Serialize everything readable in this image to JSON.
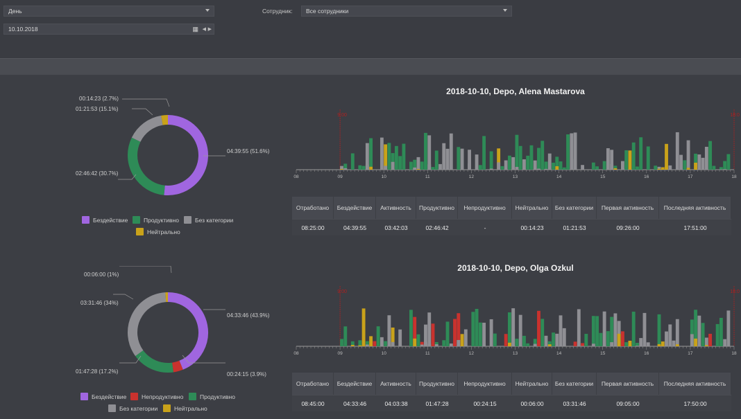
{
  "filters": {
    "period": {
      "value": "День"
    },
    "date": {
      "value": "10.10.2018"
    },
    "employee": {
      "label": "Сотрудник:",
      "value": "Все сотрудники"
    }
  },
  "colors": {
    "idle": "#a066e0",
    "productive": "#2e8b57",
    "uncategorized": "#8f8f94",
    "neutral": "#c9a21a",
    "unproductive": "#c9322e",
    "workline": "#b21f1f"
  },
  "icons": {
    "calendar": "calendar-icon",
    "prev": "arrow-left-icon",
    "next": "arrow-right-icon",
    "dropdown": "chevron-down-icon"
  },
  "columns": [
    "Отработано",
    "Бездействие",
    "Активность",
    "Продуктивно",
    "Непродуктивно",
    "Нейтрально",
    "Без категории",
    "Первая активность",
    "Последняя активность"
  ],
  "employees": [
    {
      "title": "2018-10-10, Depo, Alena Mastarova",
      "stats": [
        "08:25:00",
        "04:39:55",
        "03:42:03",
        "02:46:42",
        "-",
        "00:14:23",
        "01:21:53",
        "09:26:00",
        "17:51:00"
      ],
      "legend": [
        {
          "label": "Бездействие",
          "key": "idle"
        },
        {
          "label": "Продуктивно",
          "key": "productive"
        },
        {
          "label": "Без категории",
          "key": "uncategorized"
        },
        {
          "label": "Нейтрально",
          "key": "neutral"
        }
      ],
      "callouts": [
        "00:14:23 (2.7%)",
        "01:21:53 (15.1%)",
        "04:39:55 (51.6%)",
        "02:46:42 (30.7%)"
      ],
      "work_start": "9:00",
      "work_end": "18:00"
    },
    {
      "title": "2018-10-10, Depo, Olga Ozkul",
      "stats": [
        "08:45:00",
        "04:33:46",
        "04:03:38",
        "01:47:28",
        "00:24:15",
        "00:06:00",
        "03:31:46",
        "09:05:00",
        "17:50:00"
      ],
      "legend": [
        {
          "label": "Бездействие",
          "key": "idle"
        },
        {
          "label": "Непродуктивно",
          "key": "unproductive"
        },
        {
          "label": "Продуктивно",
          "key": "productive"
        },
        {
          "label": "Без категории",
          "key": "uncategorized"
        },
        {
          "label": "Нейтрально",
          "key": "neutral"
        }
      ],
      "callouts": [
        "00:06:00 (1%)",
        "03:31:46 (34%)",
        "04:33:46 (43.9%)",
        "01:47:28 (17.2%)",
        "00:24:15 (3.9%)"
      ],
      "work_start": "9:00",
      "work_end": "18:00"
    }
  ],
  "chart_data": [
    {
      "type": "pie",
      "title": "",
      "labels": [
        "Бездействие",
        "Продуктивно",
        "Без категории",
        "Нейтрально"
      ],
      "values": [
        51.6,
        30.7,
        15.1,
        2.7
      ]
    },
    {
      "type": "bar",
      "title": "2018-10-10, Depo, Alena Mastarova",
      "x_ticks": [
        "08",
        "09",
        "10",
        "11",
        "12",
        "13",
        "14",
        "15",
        "16",
        "17",
        "18"
      ],
      "annotations": [
        "9:00",
        "18:00"
      ]
    },
    {
      "type": "pie",
      "title": "",
      "labels": [
        "Бездействие",
        "Непродуктивно",
        "Продуктивно",
        "Без категории",
        "Нейтрально"
      ],
      "values": [
        43.9,
        3.9,
        17.2,
        34,
        1
      ]
    },
    {
      "type": "bar",
      "title": "2018-10-10, Depo, Olga Ozkul",
      "x_ticks": [
        "08",
        "09",
        "10",
        "11",
        "12",
        "13",
        "14",
        "15",
        "16",
        "17",
        "18"
      ],
      "annotations": [
        "9:00",
        "18:00"
      ]
    }
  ]
}
